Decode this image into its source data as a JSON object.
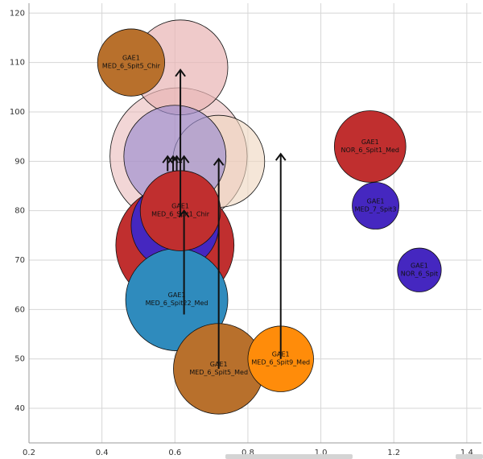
{
  "chart_data": {
    "type": "scatter",
    "title": "",
    "xlabel": "",
    "ylabel": "",
    "xlim": [
      0.2,
      1.44
    ],
    "ylim": [
      33,
      122
    ],
    "grid": true,
    "x_ticks": [
      "0.2",
      "0.4",
      "0.6",
      "0.8",
      "1.0",
      "1.2",
      "1.4"
    ],
    "y_ticks": [
      "40",
      "50",
      "60",
      "70",
      "80",
      "90",
      "100",
      "110",
      "120"
    ],
    "bubbles": [
      {
        "x": 0.61,
        "y": 91,
        "r": 0.188,
        "color": "#e8b4b4",
        "opacity": 0.55,
        "label_top": "",
        "label_bottom": ""
      },
      {
        "x": 0.72,
        "y": 90,
        "r": 0.126,
        "color": "#eed6be",
        "opacity": 0.6,
        "label_top": "",
        "label_bottom": ""
      },
      {
        "x": 0.615,
        "y": 109,
        "r": 0.13,
        "color": "#e8b4b4",
        "opacity": 0.7,
        "label_top": "",
        "label_bottom": ""
      },
      {
        "x": 0.6,
        "y": 91,
        "r": 0.14,
        "color": "#9a8ccf",
        "opacity": 0.65,
        "label_top": "",
        "label_bottom": ""
      },
      {
        "x": 0.6,
        "y": 73,
        "r": 0.162,
        "color": "#c02f2f",
        "opacity": 1,
        "label_top": "",
        "label_bottom": ""
      },
      {
        "x": 0.6,
        "y": 77,
        "r": 0.12,
        "color": "#4527c0",
        "opacity": 1,
        "label_top": "",
        "label_bottom": ""
      },
      {
        "x": 0.605,
        "y": 62,
        "r": 0.14,
        "color": "#2f8bbd",
        "opacity": 1,
        "label_top": "GAE1",
        "label_bottom": "MED_6_Spit22_Med"
      },
      {
        "x": 0.615,
        "y": 80,
        "r": 0.11,
        "color": "#c02f2f",
        "opacity": 1,
        "label_top": "GAE1",
        "label_bottom": "MED_6_Spit1_Chir"
      },
      {
        "x": 0.48,
        "y": 110,
        "r": 0.092,
        "color": "#b8702c",
        "opacity": 1,
        "label_top": "GAE1",
        "label_bottom": "MED_6_Spit5_Chir"
      },
      {
        "x": 0.72,
        "y": 48,
        "r": 0.124,
        "color": "#b8702c",
        "opacity": 1,
        "label_top": "GAE1",
        "label_bottom": "MED_6_Spit5_Med"
      },
      {
        "x": 0.89,
        "y": 50,
        "r": 0.09,
        "color": "#ff8c0a",
        "opacity": 1,
        "label_top": "GAE1",
        "label_bottom": "MED_6_Spit9_Med"
      },
      {
        "x": 1.135,
        "y": 93,
        "r": 0.098,
        "color": "#c02f2f",
        "opacity": 1,
        "label_top": "GAE1",
        "label_bottom": "NOR_6_Spit1_Med"
      },
      {
        "x": 1.15,
        "y": 81,
        "r": 0.064,
        "color": "#4527c0",
        "opacity": 1,
        "label_top": "GAE1",
        "label_bottom": "MED_7_Spit3"
      },
      {
        "x": 1.27,
        "y": 68,
        "r": 0.06,
        "color": "#4527c0",
        "opacity": 1,
        "label_top": "GAE1",
        "label_bottom": "NOR_6_Spit"
      }
    ],
    "arrows": [
      {
        "x": 0.615,
        "y_from": 79,
        "y_to": 108.5
      },
      {
        "x": 0.58,
        "y_from": 88,
        "y_to": 91
      },
      {
        "x": 0.595,
        "y_from": 88,
        "y_to": 91
      },
      {
        "x": 0.605,
        "y_from": 88,
        "y_to": 91
      },
      {
        "x": 0.625,
        "y_from": 88,
        "y_to": 91
      },
      {
        "x": 0.72,
        "y_from": 48,
        "y_to": 90.5
      },
      {
        "x": 0.89,
        "y_from": 50,
        "y_to": 91.5
      },
      {
        "x": 0.625,
        "y_from": 59,
        "y_to": 80
      }
    ]
  }
}
